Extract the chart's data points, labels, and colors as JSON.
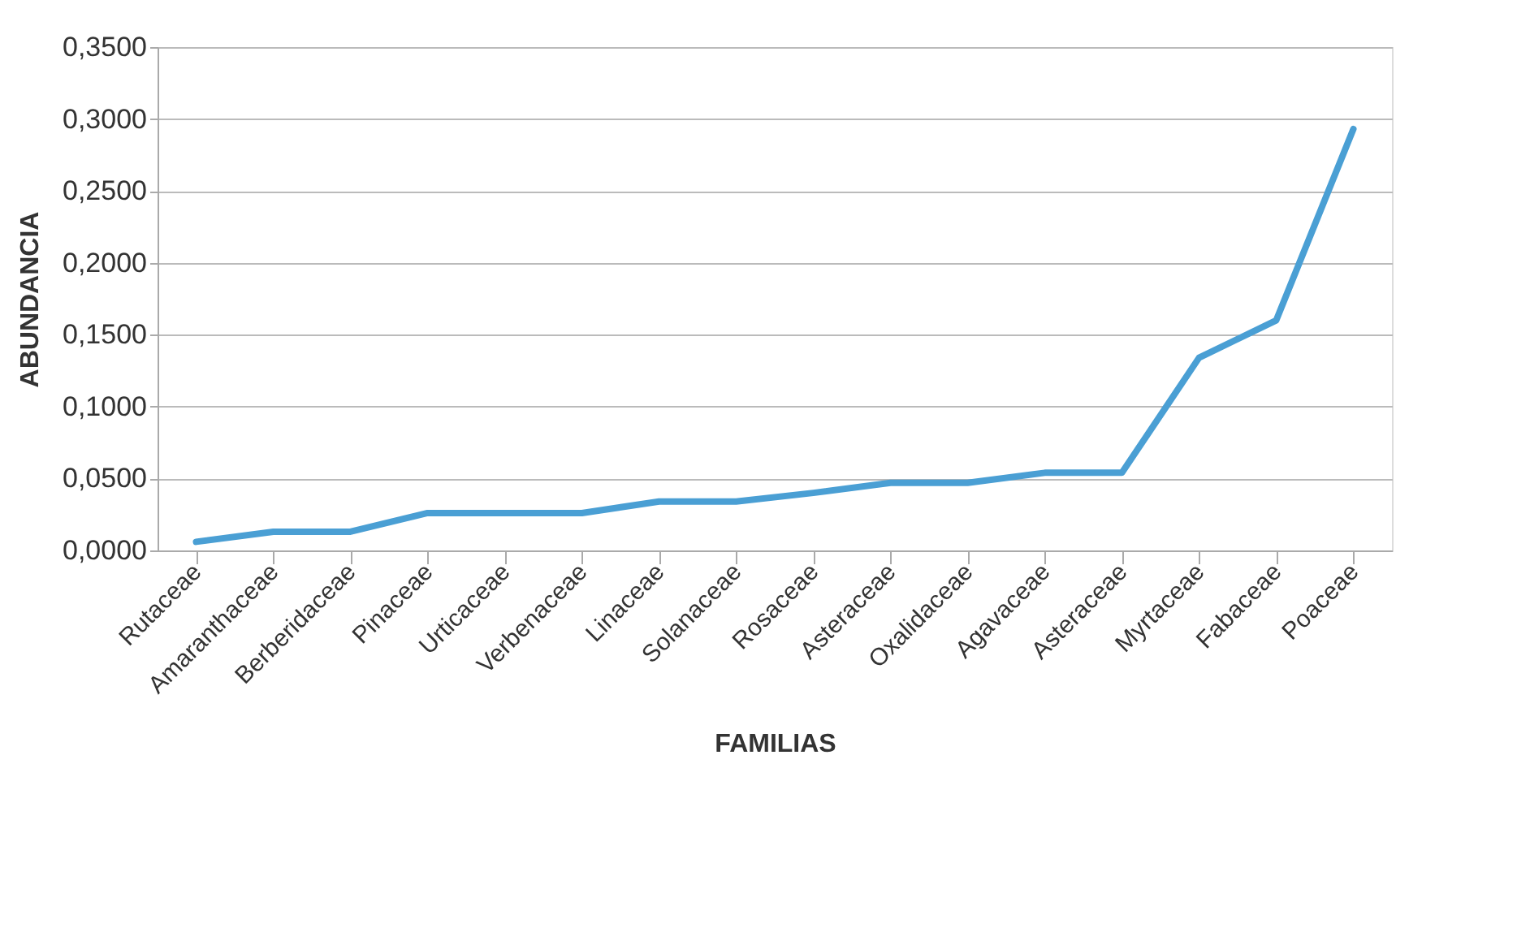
{
  "chart_data": {
    "type": "line",
    "xlabel": "FAMILIAS",
    "ylabel": "ABUNDANCIA",
    "categories": [
      "Rutaceae",
      "Amaranthaceae",
      "Berberidaceae",
      "Pinaceae",
      "Urticaceae",
      "Verbenaceae",
      "Linaceae",
      "Solanaceae",
      "Rosaceae",
      "Asteraceae",
      "Oxalidaceae",
      "Agavaceae",
      "Asteraceae",
      "Myrtaceae",
      "Fabaceae",
      "Poaceae"
    ],
    "series": [
      {
        "color": "#4a9fd4",
        "values": [
          0.006,
          0.013,
          0.013,
          0.026,
          0.026,
          0.026,
          0.034,
          0.034,
          0.04,
          0.047,
          0.047,
          0.054,
          0.054,
          0.134,
          0.16,
          0.293
        ]
      }
    ],
    "ylim": [
      0,
      0.35
    ],
    "yticks": [
      {
        "value": 0,
        "label": "0,0000"
      },
      {
        "value": 0.05,
        "label": "0,0500"
      },
      {
        "value": 0.1,
        "label": "0,1000"
      },
      {
        "value": 0.15,
        "label": "0,1500"
      },
      {
        "value": 0.2,
        "label": "0,2000"
      },
      {
        "value": 0.25,
        "label": "0,2500"
      },
      {
        "value": 0.3,
        "label": "0,3000"
      },
      {
        "value": 0.35,
        "label": "0,3500"
      }
    ],
    "grid": "y",
    "marker": "none",
    "line_style": "solid"
  }
}
